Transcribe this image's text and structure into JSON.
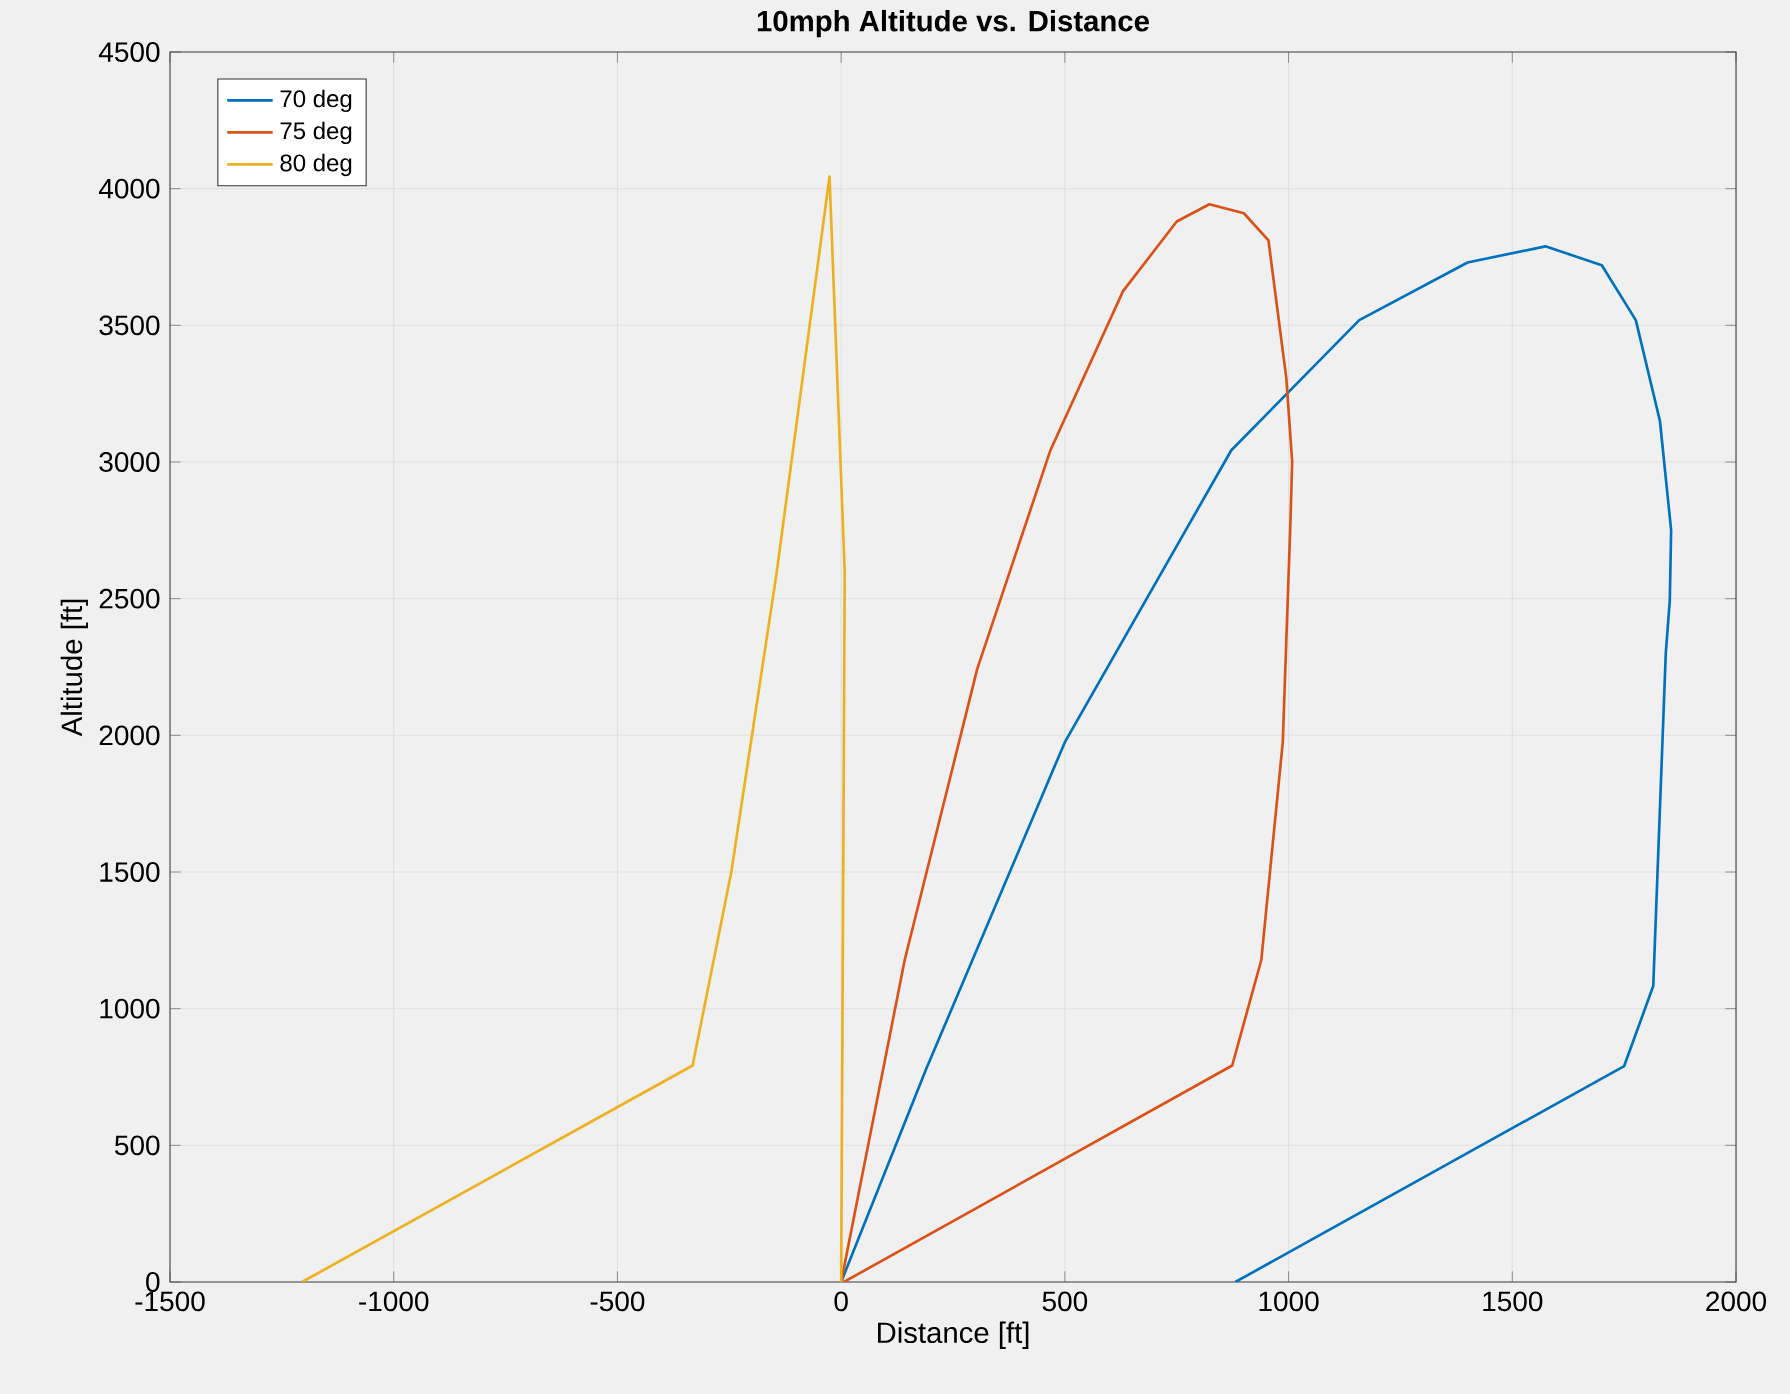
{
  "chart_data": {
    "type": "line",
    "title": "10mph Altitude vs. Distance",
    "xlabel": "Distance [ft]",
    "ylabel": "Altitude [ft]",
    "xlim": [
      -1500,
      2000
    ],
    "xticks": [
      -1500,
      -1000,
      -500,
      0,
      500,
      1000,
      1500,
      2000
    ],
    "ylim": [
      0,
      4500
    ],
    "yticks": [
      0,
      500,
      1000,
      1500,
      2000,
      2500,
      3000,
      3500,
      4000,
      4500
    ],
    "grid": true,
    "legend": "top left",
    "marker": "none",
    "line_style": "solid",
    "series": [
      {
        "name": "70 deg",
        "color": "#0072bd",
        "x": [
          0,
          190,
          500,
          872,
          1158,
          1400,
          1574,
          1700,
          1776,
          1830,
          1855,
          1852,
          1843,
          1815,
          1750,
          881
        ],
        "values": [
          0,
          779,
          1975,
          3043,
          3519,
          3730,
          3789,
          3720,
          3519,
          3150,
          2750,
          2495,
          2300,
          1083,
          790,
          0
        ]
      },
      {
        "name": "75 deg",
        "color": "#d95319",
        "x": [
          0,
          142,
          304,
          467,
          630,
          750,
          823,
          900,
          955,
          995,
          1008,
          1004,
          987,
          939,
          874,
          6
        ],
        "values": [
          0,
          1178,
          2242,
          3040,
          3625,
          3880,
          3943,
          3910,
          3811,
          3306,
          3000,
          2773,
          1975,
          1178,
          792,
          0
        ]
      },
      {
        "name": "80 deg",
        "color": "#edb120",
        "x": [
          0,
          8,
          -26,
          -144,
          -246,
          -332,
          -1205
        ],
        "values": [
          0,
          2597,
          4044,
          2597,
          1495,
          792,
          0
        ]
      }
    ]
  }
}
